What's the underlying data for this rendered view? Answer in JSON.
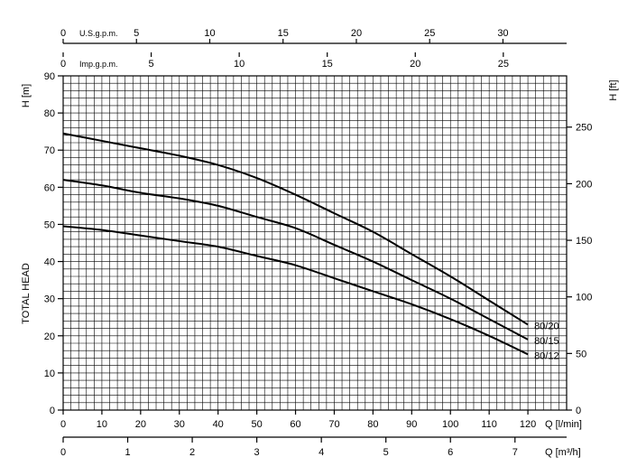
{
  "chart_data": {
    "type": "line",
    "x_axis": {
      "label": "Q [l/min]",
      "range": [
        0,
        130
      ],
      "ticks": [
        0,
        10,
        20,
        30,
        40,
        50,
        60,
        70,
        80,
        90,
        100,
        110,
        120
      ]
    },
    "x_axis_m3h": {
      "label": "Q [m³/h]",
      "ticks": [
        0,
        1,
        2,
        3,
        4,
        5,
        6,
        7
      ]
    },
    "x_axis_usgpm": {
      "label": "U.S.g.p.m.",
      "ticks": [
        0,
        5,
        10,
        15,
        20,
        25,
        30
      ]
    },
    "x_axis_impgpm": {
      "label": "Imp.g.p.m.",
      "ticks": [
        0,
        5,
        10,
        15,
        20,
        25
      ]
    },
    "y_axis": {
      "unit_label": "H [m]",
      "label": "TOTAL HEAD",
      "range": [
        0,
        90
      ],
      "ticks": [
        0,
        10,
        20,
        30,
        40,
        50,
        60,
        70,
        80,
        90
      ]
    },
    "y2_axis": {
      "label": "H [ft]",
      "ticks": [
        0,
        50,
        100,
        150,
        200,
        250
      ]
    },
    "grid": true,
    "series": [
      {
        "name": "80/20",
        "x": [
          0,
          10,
          20,
          30,
          40,
          50,
          60,
          70,
          80,
          90,
          100,
          110,
          120
        ],
        "y": [
          74.5,
          72.5,
          70.5,
          68.5,
          66,
          62.5,
          58,
          53,
          48,
          42,
          36,
          29.5,
          23
        ]
      },
      {
        "name": "80/15",
        "x": [
          0,
          10,
          20,
          30,
          40,
          50,
          60,
          70,
          80,
          90,
          100,
          110,
          120
        ],
        "y": [
          62,
          60.5,
          58.5,
          57,
          55,
          52,
          49,
          44.5,
          40,
          35,
          30,
          24.5,
          19
        ]
      },
      {
        "name": "80/12",
        "x": [
          0,
          10,
          20,
          30,
          40,
          50,
          60,
          70,
          80,
          90,
          100,
          110,
          120
        ],
        "y": [
          49.5,
          48.5,
          47,
          45.5,
          44,
          41.5,
          39,
          35.5,
          32,
          28.5,
          24.5,
          20,
          15
        ]
      }
    ]
  }
}
